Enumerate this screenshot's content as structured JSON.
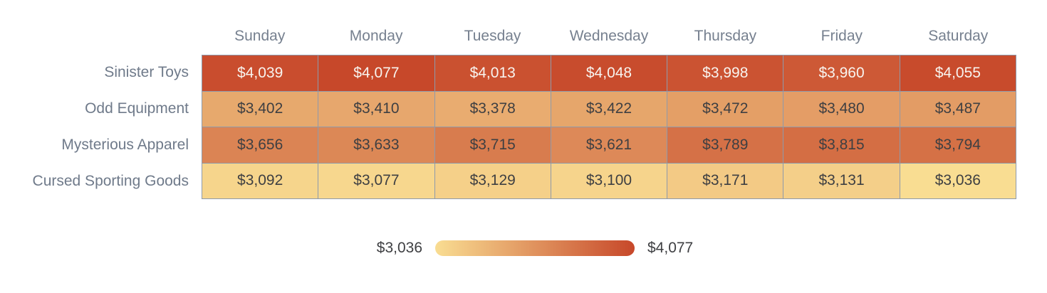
{
  "chart_data": {
    "type": "heatmap",
    "columns": [
      "Sunday",
      "Monday",
      "Tuesday",
      "Wednesday",
      "Thursday",
      "Friday",
      "Saturday"
    ],
    "rows": [
      "Sinister Toys",
      "Odd Equipment",
      "Mysterious Apparel",
      "Cursed Sporting Goods"
    ],
    "values": [
      [
        4039,
        4077,
        4013,
        4048,
        3998,
        3960,
        4055
      ],
      [
        3402,
        3410,
        3378,
        3422,
        3472,
        3480,
        3487
      ],
      [
        3656,
        3633,
        3715,
        3621,
        3789,
        3815,
        3794
      ],
      [
        3092,
        3077,
        3129,
        3100,
        3171,
        3131,
        3036
      ]
    ],
    "formatted_values": [
      [
        "$4,039",
        "$4,077",
        "$4,013",
        "$4,048",
        "$3,998",
        "$3,960",
        "$4,055"
      ],
      [
        "$3,402",
        "$3,410",
        "$3,378",
        "$3,422",
        "$3,472",
        "$3,480",
        "$3,487"
      ],
      [
        "$3,656",
        "$3,633",
        "$3,715",
        "$3,621",
        "$3,789",
        "$3,815",
        "$3,794"
      ],
      [
        "$3,092",
        "$3,077",
        "$3,129",
        "$3,100",
        "$3,171",
        "$3,131",
        "$3,036"
      ]
    ],
    "value_min": 3036,
    "value_max": 4077,
    "legend": {
      "min_label": "$3,036",
      "max_label": "$4,077"
    },
    "colors": {
      "scale_min": "#f9dd92",
      "scale_max": "#c7482a",
      "grid_line": "#8e9aab",
      "header_text": "#76808f",
      "row_label_text": "#6f7a8a",
      "cell_text_dark": "#3e3f42",
      "cell_text_light": "#f8f4ef"
    },
    "layout": {
      "grid_on": false,
      "legend_position": "bottom-center"
    }
  }
}
